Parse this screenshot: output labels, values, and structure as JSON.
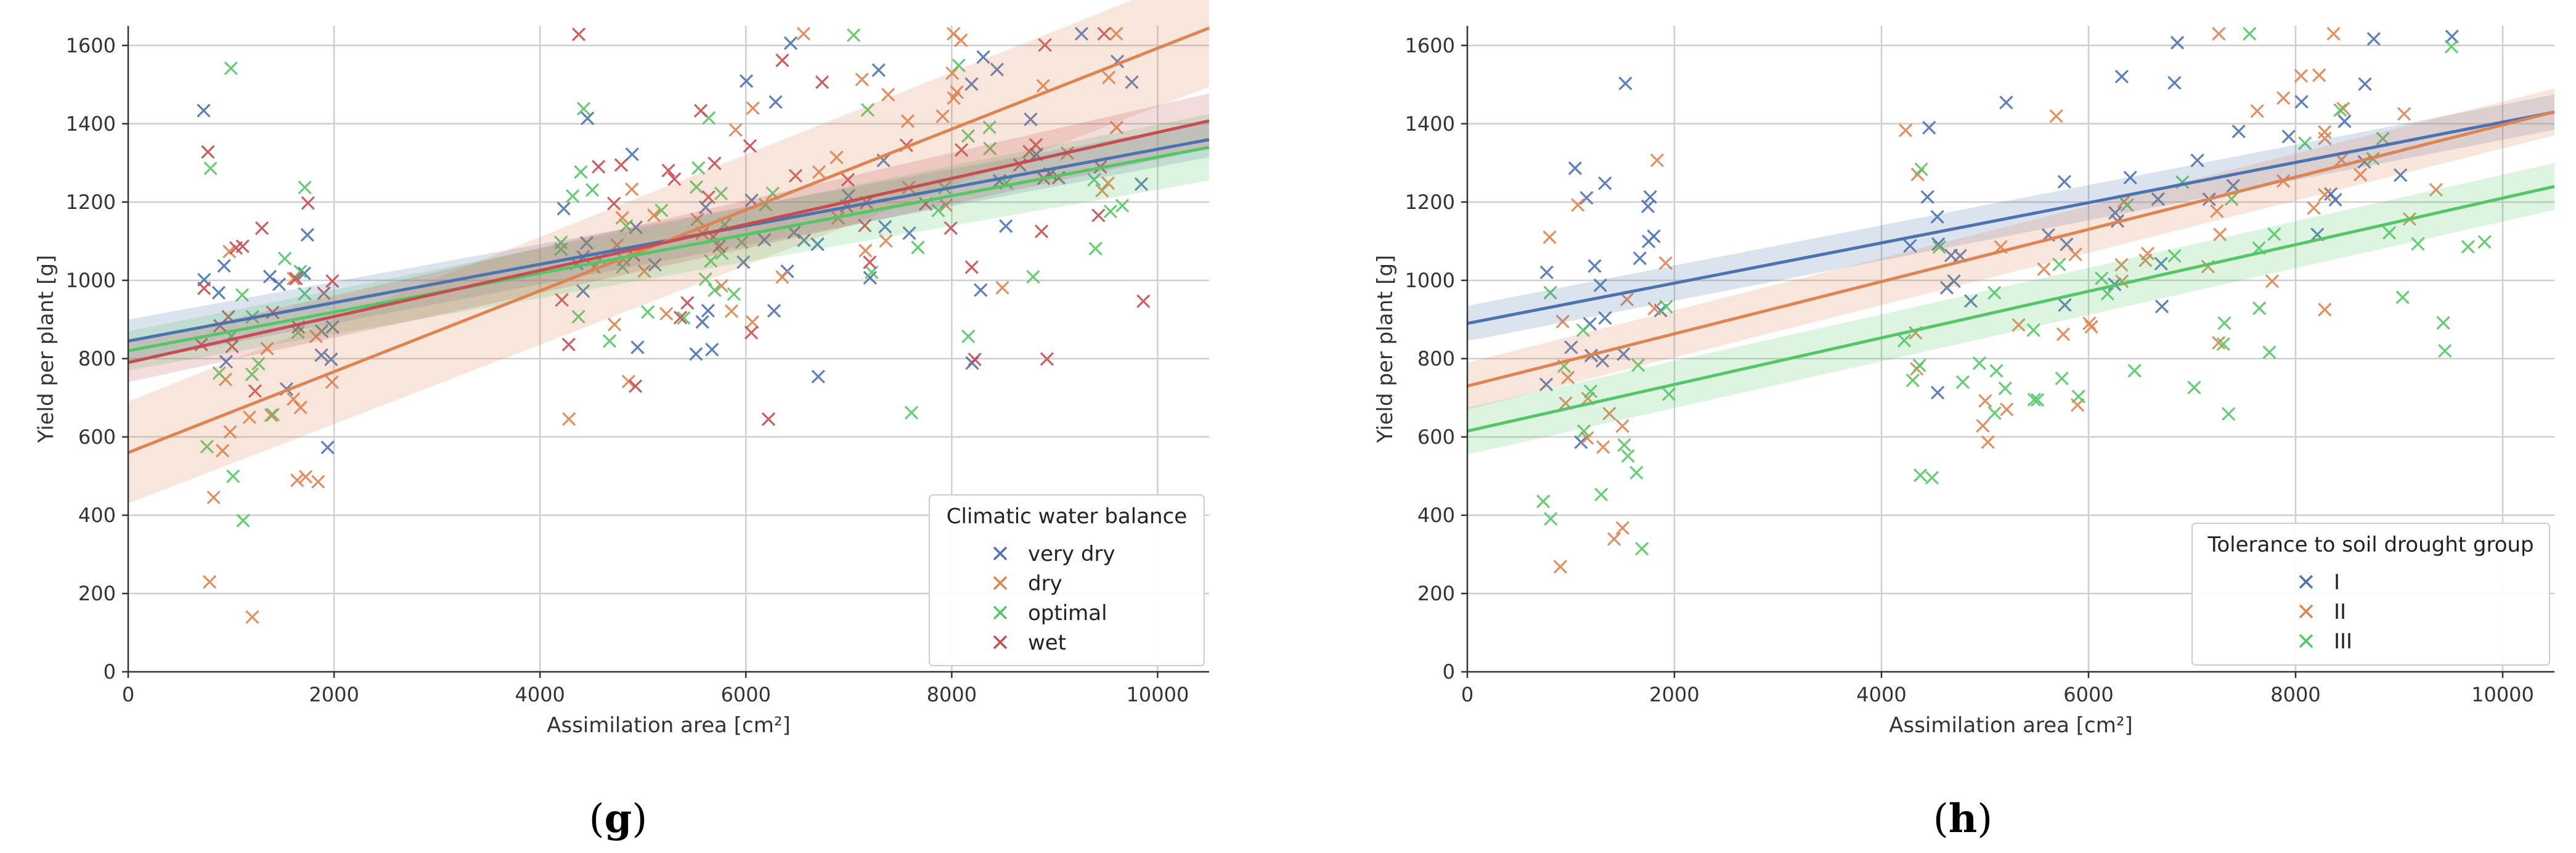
{
  "figure": {
    "panel_labels": [
      "g",
      "h"
    ]
  },
  "chart_data": [
    {
      "type": "scatter",
      "panel": "g",
      "xlabel": "Assimilation area [cm²]",
      "ylabel": "Yield per plant [g]",
      "xlim": [
        0,
        10500
      ],
      "ylim": [
        0,
        1650
      ],
      "xticks": [
        "0",
        "2000",
        "4000",
        "6000",
        "8000",
        "10000"
      ],
      "yticks": [
        "0",
        "200",
        "400",
        "600",
        "800",
        "1000",
        "1200",
        "1400",
        "1600"
      ],
      "grid": true,
      "legend": {
        "title": "Climatic water balance",
        "position": "lower-right"
      },
      "series": [
        {
          "name": "very dry",
          "color": "#4c72b0",
          "fit": {
            "intercept": 845,
            "slope": 0.049,
            "ci_x0": 55,
            "ci_x1": 45
          }
        },
        {
          "name": "dry",
          "color": "#dd8452",
          "fit": {
            "intercept": 560,
            "slope": 0.1033,
            "ci_x0": 130,
            "ci_x1": 150
          }
        },
        {
          "name": "optimal",
          "color": "#55c667",
          "fit": {
            "intercept": 820,
            "slope": 0.0495,
            "ci_x0": 50,
            "ci_x1": 85
          }
        },
        {
          "name": "wet",
          "color": "#c44e52",
          "fit": {
            "intercept": 790,
            "slope": 0.0588,
            "ci_x0": 50,
            "ci_x1": 70
          }
        }
      ]
    },
    {
      "type": "scatter",
      "panel": "h",
      "xlabel": "Assimilation area [cm²]",
      "ylabel": "Yield per plant [g]",
      "xlim": [
        0,
        10500
      ],
      "ylim": [
        0,
        1650
      ],
      "xticks": [
        "0",
        "2000",
        "4000",
        "6000",
        "8000",
        "10000"
      ],
      "yticks": [
        "0",
        "200",
        "400",
        "600",
        "800",
        "1000",
        "1200",
        "1400",
        "1600"
      ],
      "grid": true,
      "legend": {
        "title": "Tolerance to soil drought group",
        "position": "lower-right"
      },
      "series": [
        {
          "name": "I",
          "color": "#4c72b0",
          "fit": {
            "intercept": 890,
            "slope": 0.0514,
            "ci_x0": 45,
            "ci_x1": 45
          }
        },
        {
          "name": "II",
          "color": "#dd8452",
          "fit": {
            "intercept": 730,
            "slope": 0.0667,
            "ci_x0": 60,
            "ci_x1": 60
          }
        },
        {
          "name": "III",
          "color": "#55c667",
          "fit": {
            "intercept": 615,
            "slope": 0.0595,
            "ci_x0": 60,
            "ci_x1": 60
          }
        }
      ]
    }
  ]
}
